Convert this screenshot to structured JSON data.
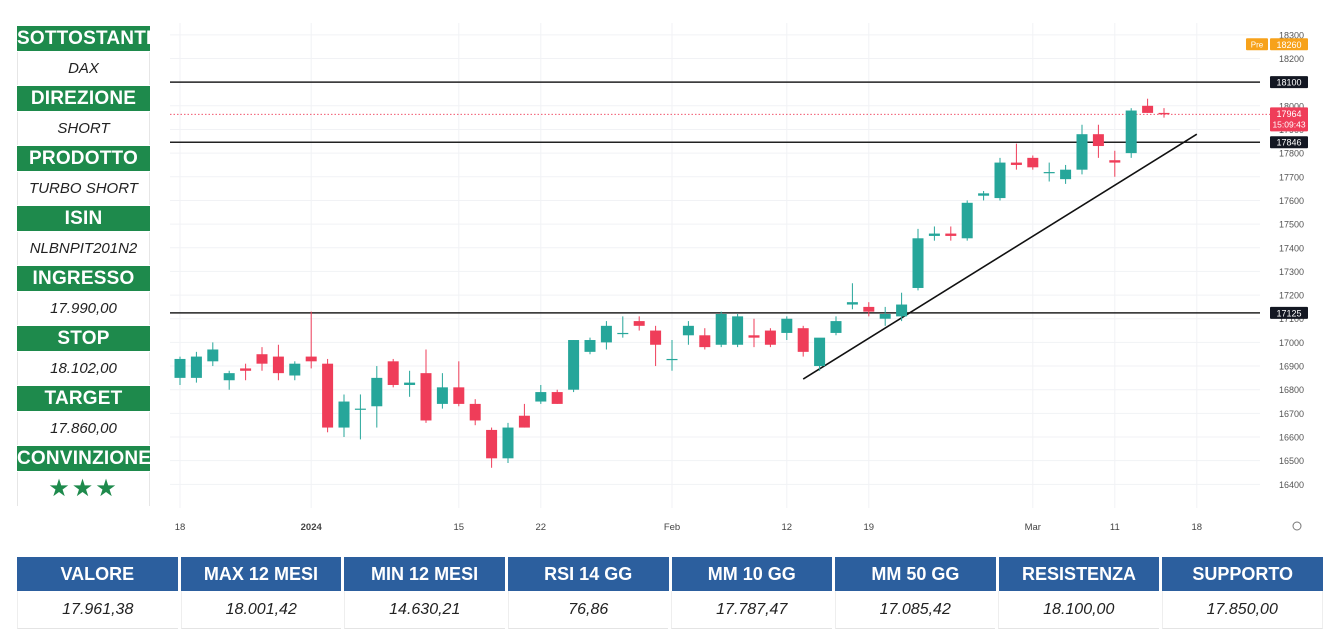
{
  "sidebar": {
    "items": [
      {
        "label": "SOTTOSTANTE",
        "value": "DAX"
      },
      {
        "label": "DIREZIONE",
        "value": "SHORT"
      },
      {
        "label": "PRODOTTO",
        "value": "TURBO SHORT"
      },
      {
        "label": "ISIN",
        "value": "NLBNPIT201N2"
      },
      {
        "label": "INGRESSO",
        "value": "17.990,00"
      },
      {
        "label": "STOP",
        "value": "18.102,00"
      },
      {
        "label": "TARGET",
        "value": "17.860,00"
      },
      {
        "label": "CONVINZIONE",
        "value": "★★★"
      }
    ]
  },
  "colors": {
    "up": "#26a69a",
    "down": "#ef3d59",
    "brand": "#1e8a4c",
    "table_header": "#2c5f9e",
    "pre_badge": "#f7a21b"
  },
  "table": {
    "headers": [
      "VALORE",
      "MAX 12 MESI",
      "MIN 12 MESI",
      "RSI 14 GG",
      "MM 10 GG",
      "MM 50 GG",
      "RESISTENZA",
      "SUPPORTO"
    ],
    "values": [
      "17.961,38",
      "18.001,42",
      "14.630,21",
      "76,86",
      "17.787,47",
      "17.085,42",
      "18.100,00",
      "17.850,00"
    ]
  },
  "chart_data": {
    "type": "candlestick",
    "ylim": [
      16300,
      18350
    ],
    "y_ticks": [
      16400,
      16500,
      16600,
      16700,
      16800,
      16900,
      17000,
      17100,
      17200,
      17300,
      17400,
      17500,
      17600,
      17700,
      17800,
      17900,
      18000,
      18100,
      18200,
      18300
    ],
    "x_ticks": [
      {
        "label": "18",
        "index": 0
      },
      {
        "label": "2024",
        "index": 8
      },
      {
        "label": "15",
        "index": 17
      },
      {
        "label": "22",
        "index": 22
      },
      {
        "label": "Feb",
        "index": 30
      },
      {
        "label": "12",
        "index": 37
      },
      {
        "label": "19",
        "index": 42
      },
      {
        "label": "Mar",
        "index": 52
      },
      {
        "label": "11",
        "index": 57
      },
      {
        "label": "18",
        "index": 62
      }
    ],
    "horizontal_levels": [
      {
        "value": 18100,
        "label": "18100"
      },
      {
        "value": 17846,
        "label": "17846"
      },
      {
        "value": 17125,
        "label": "17125"
      }
    ],
    "trendline": {
      "from": {
        "index": 38,
        "value": 16845
      },
      "to": {
        "index": 62,
        "value": 17880
      }
    },
    "price_line": {
      "value": 17964
    },
    "last_price_label": {
      "price": "17964",
      "countdown": "15:09:43"
    },
    "pre_market": {
      "label": "Pre",
      "value": "18260"
    },
    "candles": [
      {
        "o": 16850,
        "h": 16940,
        "l": 16820,
        "c": 16930
      },
      {
        "o": 16850,
        "h": 16960,
        "l": 16830,
        "c": 16940
      },
      {
        "o": 16920,
        "h": 17000,
        "l": 16900,
        "c": 16970
      },
      {
        "o": 16840,
        "h": 16880,
        "l": 16800,
        "c": 16870
      },
      {
        "o": 16890,
        "h": 16910,
        "l": 16840,
        "c": 16880
      },
      {
        "o": 16950,
        "h": 16980,
        "l": 16880,
        "c": 16910
      },
      {
        "o": 16940,
        "h": 16990,
        "l": 16840,
        "c": 16870
      },
      {
        "o": 16860,
        "h": 16920,
        "l": 16840,
        "c": 16910
      },
      {
        "o": 16940,
        "h": 17130,
        "l": 16890,
        "c": 16920
      },
      {
        "o": 16910,
        "h": 16930,
        "l": 16620,
        "c": 16640
      },
      {
        "o": 16640,
        "h": 16780,
        "l": 16600,
        "c": 16750
      },
      {
        "o": 16720,
        "h": 16780,
        "l": 16590,
        "c": 16720
      },
      {
        "o": 16730,
        "h": 16900,
        "l": 16640,
        "c": 16850
      },
      {
        "o": 16920,
        "h": 16930,
        "l": 16810,
        "c": 16820
      },
      {
        "o": 16820,
        "h": 16880,
        "l": 16770,
        "c": 16830
      },
      {
        "o": 16870,
        "h": 16970,
        "l": 16660,
        "c": 16670
      },
      {
        "o": 16740,
        "h": 16870,
        "l": 16720,
        "c": 16810
      },
      {
        "o": 16810,
        "h": 16920,
        "l": 16730,
        "c": 16740
      },
      {
        "o": 16740,
        "h": 16760,
        "l": 16650,
        "c": 16670
      },
      {
        "o": 16630,
        "h": 16640,
        "l": 16470,
        "c": 16510
      },
      {
        "o": 16510,
        "h": 16660,
        "l": 16490,
        "c": 16640
      },
      {
        "o": 16690,
        "h": 16740,
        "l": 16640,
        "c": 16640
      },
      {
        "o": 16750,
        "h": 16820,
        "l": 16740,
        "c": 16790
      },
      {
        "o": 16790,
        "h": 16800,
        "l": 16740,
        "c": 16740
      },
      {
        "o": 16800,
        "h": 17010,
        "l": 16790,
        "c": 17010
      },
      {
        "o": 16960,
        "h": 17020,
        "l": 16950,
        "c": 17010
      },
      {
        "o": 17000,
        "h": 17090,
        "l": 16970,
        "c": 17070
      },
      {
        "o": 17040,
        "h": 17110,
        "l": 17020,
        "c": 17040
      },
      {
        "o": 17090,
        "h": 17110,
        "l": 17050,
        "c": 17070
      },
      {
        "o": 17050,
        "h": 17070,
        "l": 16900,
        "c": 16990
      },
      {
        "o": 16930,
        "h": 17010,
        "l": 16880,
        "c": 16930
      },
      {
        "o": 17030,
        "h": 17090,
        "l": 16990,
        "c": 17070
      },
      {
        "o": 17030,
        "h": 17060,
        "l": 16970,
        "c": 16980
      },
      {
        "o": 16990,
        "h": 17130,
        "l": 16980,
        "c": 17120
      },
      {
        "o": 16990,
        "h": 17120,
        "l": 16980,
        "c": 17110
      },
      {
        "o": 17030,
        "h": 17100,
        "l": 16980,
        "c": 17020
      },
      {
        "o": 17050,
        "h": 17060,
        "l": 16980,
        "c": 16990
      },
      {
        "o": 17040,
        "h": 17110,
        "l": 17010,
        "c": 17100
      },
      {
        "o": 17060,
        "h": 17070,
        "l": 16940,
        "c": 16960
      },
      {
        "o": 16900,
        "h": 17010,
        "l": 16880,
        "c": 17020
      },
      {
        "o": 17040,
        "h": 17110,
        "l": 17030,
        "c": 17090
      },
      {
        "o": 17160,
        "h": 17250,
        "l": 17140,
        "c": 17170
      },
      {
        "o": 17150,
        "h": 17170,
        "l": 17110,
        "c": 17130
      },
      {
        "o": 17100,
        "h": 17150,
        "l": 17070,
        "c": 17120
      },
      {
        "o": 17110,
        "h": 17210,
        "l": 17090,
        "c": 17160
      },
      {
        "o": 17230,
        "h": 17480,
        "l": 17220,
        "c": 17440
      },
      {
        "o": 17450,
        "h": 17490,
        "l": 17430,
        "c": 17460
      },
      {
        "o": 17460,
        "h": 17490,
        "l": 17430,
        "c": 17450
      },
      {
        "o": 17440,
        "h": 17600,
        "l": 17430,
        "c": 17590
      },
      {
        "o": 17620,
        "h": 17640,
        "l": 17600,
        "c": 17630
      },
      {
        "o": 17610,
        "h": 17780,
        "l": 17600,
        "c": 17760
      },
      {
        "o": 17760,
        "h": 17840,
        "l": 17730,
        "c": 17750
      },
      {
        "o": 17780,
        "h": 17790,
        "l": 17730,
        "c": 17740
      },
      {
        "o": 17720,
        "h": 17760,
        "l": 17680,
        "c": 17720
      },
      {
        "o": 17690,
        "h": 17750,
        "l": 17670,
        "c": 17730
      },
      {
        "o": 17730,
        "h": 17920,
        "l": 17710,
        "c": 17880
      },
      {
        "o": 17880,
        "h": 17920,
        "l": 17780,
        "c": 17830
      },
      {
        "o": 17770,
        "h": 17810,
        "l": 17700,
        "c": 17760
      },
      {
        "o": 17800,
        "h": 17990,
        "l": 17780,
        "c": 17980
      },
      {
        "o": 18000,
        "h": 18030,
        "l": 17970,
        "c": 17970
      },
      {
        "o": 17970,
        "h": 17990,
        "l": 17950,
        "c": 17964
      }
    ]
  }
}
